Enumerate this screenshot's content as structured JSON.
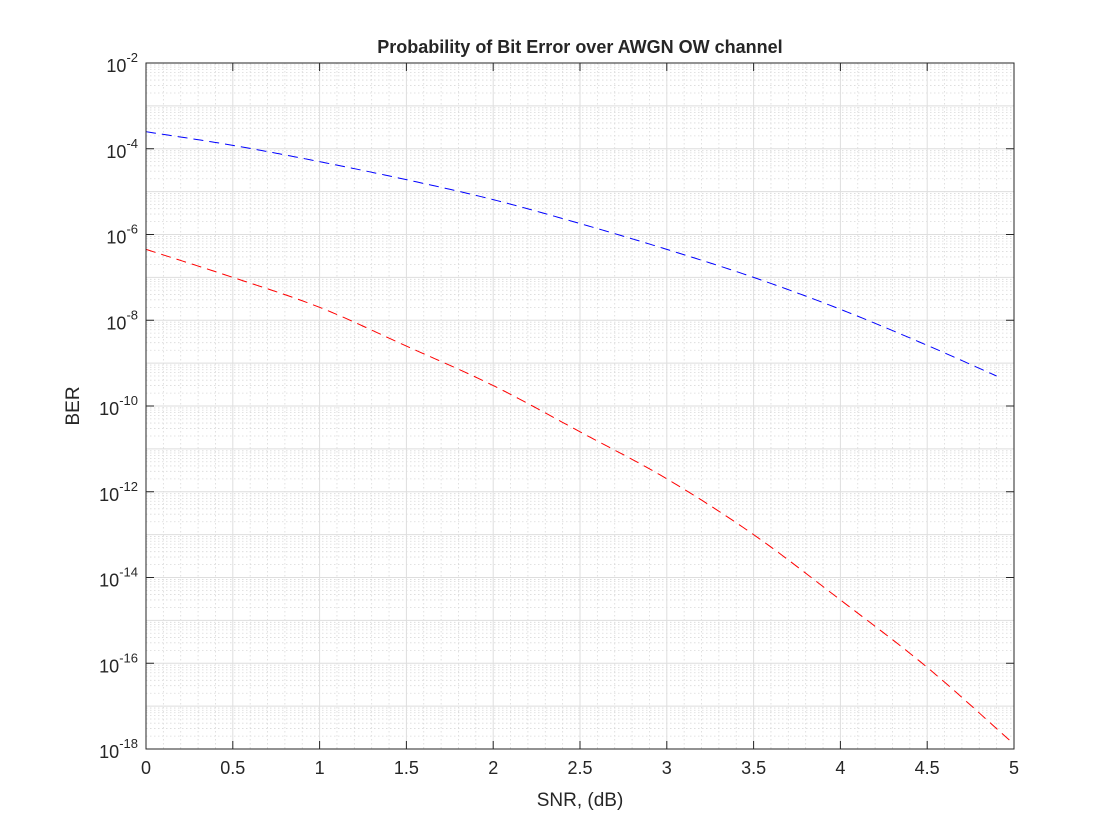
{
  "chart_data": {
    "type": "line",
    "title": "Probability of Bit Error over AWGN OW channel",
    "xlabel": "SNR, (dB)",
    "ylabel": "BER",
    "xlim": [
      0,
      5
    ],
    "ylim": [
      1e-18,
      0.01
    ],
    "yscale": "log",
    "grid": true,
    "minor_grid": true,
    "x_ticks": [
      "0",
      "0.5",
      "1",
      "1.5",
      "2",
      "2.5",
      "3",
      "3.5",
      "4",
      "4.5",
      "5"
    ],
    "y_ticks": [
      {
        "base": "10",
        "exp": "-18"
      },
      {
        "base": "10",
        "exp": "-16"
      },
      {
        "base": "10",
        "exp": "-14"
      },
      {
        "base": "10",
        "exp": "-12"
      },
      {
        "base": "10",
        "exp": "-10"
      },
      {
        "base": "10",
        "exp": "-8"
      },
      {
        "base": "10",
        "exp": "-6"
      },
      {
        "base": "10",
        "exp": "-4"
      },
      {
        "base": "10",
        "exp": "-2"
      }
    ],
    "series": [
      {
        "color": "#0000ff",
        "line_style": "dashed",
        "x": [
          0,
          0.5,
          1,
          1.5,
          2,
          2.5,
          3,
          3.5,
          4,
          4.5,
          4.9
        ],
        "y": [
          0.00025,
          0.00012,
          5e-05,
          1.9e-05,
          6.5e-06,
          1.8e-06,
          4.5e-07,
          1e-07,
          1.8e-08,
          2.6e-09,
          5e-10
        ]
      },
      {
        "color": "#ff0000",
        "line_style": "dashed",
        "x": [
          0,
          0.5,
          1,
          1.5,
          2,
          2.5,
          3,
          3.5,
          4,
          4.5,
          5
        ],
        "y": [
          4.5e-07,
          1e-07,
          2e-08,
          2.5e-09,
          3e-10,
          2.5e-11,
          2e-12,
          1e-13,
          3e-15,
          8e-17,
          1.3e-18
        ]
      }
    ]
  }
}
